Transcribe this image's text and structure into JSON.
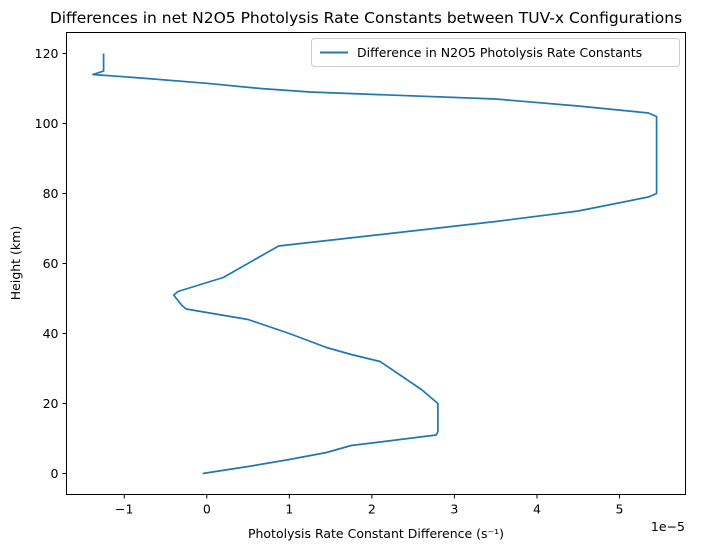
{
  "chart_data": {
    "type": "line",
    "title": "Differences in net N2O5 Photolysis Rate Constants between TUV-x Configurations",
    "xlabel": "Photolysis Rate Constant Difference (s⁻¹)",
    "ylabel": "Height (km)",
    "x_offset_label": "1e−5",
    "x_scale": 1e-05,
    "xlim": [
      -1.7e-05,
      5.8e-05
    ],
    "ylim": [
      -6,
      126
    ],
    "x_ticks": [
      -1e-05,
      0,
      1e-05,
      2e-05,
      3e-05,
      4e-05,
      5e-05
    ],
    "x_tick_labels": [
      "−1",
      "0",
      "1",
      "2",
      "3",
      "4",
      "5"
    ],
    "y_ticks": [
      0,
      20,
      40,
      60,
      80,
      100,
      120
    ],
    "y_tick_labels": [
      "0",
      "20",
      "40",
      "60",
      "80",
      "100",
      "120"
    ],
    "grid": false,
    "legend_position": "upper right",
    "series": [
      {
        "name": "Difference in N2O5 Photolysis Rate Constants",
        "color": "#1f77b4",
        "x": [
          -5e-07,
          5e-06,
          1e-05,
          1.45e-05,
          1.75e-05,
          2.1e-05,
          2.78e-05,
          2.8e-05,
          2.8e-05,
          2.8e-05,
          2.6e-05,
          2.35e-05,
          2.1e-05,
          1.75e-05,
          1.45e-05,
          1e-05,
          5e-06,
          0.0,
          -2.5e-06,
          -3e-06,
          -3.7e-06,
          -4e-06,
          -3.5e-06,
          2e-06,
          8.7e-06,
          2e-05,
          3.5e-05,
          4.5e-05,
          5.35e-05,
          5.45e-05,
          5.45e-05,
          5.45e-05,
          5.35e-05,
          4.5e-05,
          3.5e-05,
          1.25e-05,
          6.5e-06,
          0.0,
          -8e-06,
          -1.38e-05,
          -1.25e-05,
          -1.25e-05,
          -1.25e-05
        ],
        "y": [
          0,
          2,
          4,
          6,
          8,
          9,
          11,
          12,
          15,
          20,
          24,
          28,
          32,
          34,
          36,
          40,
          44,
          46,
          47,
          48,
          50,
          51,
          52,
          56,
          65,
          68,
          72,
          75,
          79,
          80,
          90,
          102,
          103,
          105,
          107,
          109,
          110,
          111.5,
          113,
          114,
          115,
          117,
          120
        ]
      }
    ]
  }
}
